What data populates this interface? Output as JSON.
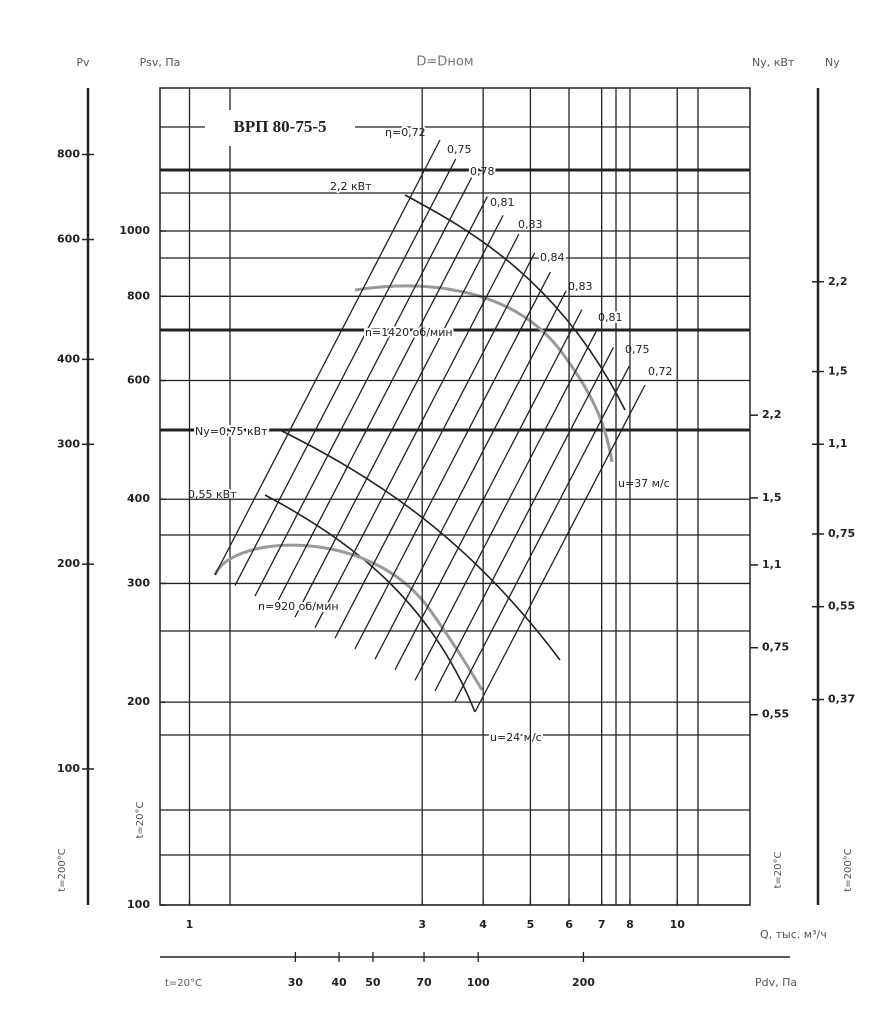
{
  "chart_data": {
    "type": "nomogram",
    "title": "D=Dном",
    "subtitle": "ВРП 80-75-5",
    "axes": [
      {
        "label": "Q, тыс. м³/ч",
        "scale": "log",
        "lim": [
          0.87,
          14.1
        ],
        "ticks": [
          1,
          3,
          4,
          5,
          6,
          7,
          8,
          10
        ]
      },
      {
        "label": "Pdv, Па",
        "temperature": "t=20°C",
        "scale": "log",
        "lim": [
          12.3,
          599
        ],
        "ticks": [
          30,
          40,
          50,
          70,
          100,
          200
        ]
      },
      {
        "label": "Pv",
        "temperature": "t=200°C",
        "scale": "log",
        "lim": [
          63.1,
          1002
        ],
        "ticks": [
          100,
          200,
          300,
          400,
          600,
          800
        ]
      },
      {
        "label": "Psv, Па",
        "temperature": "t=20°C",
        "scale": "log",
        "lim": [
          100,
          1630
        ],
        "ticks": [
          100,
          200,
          300,
          400,
          600,
          800,
          1000
        ]
      },
      {
        "label": "Ny, кВт",
        "temperature": "t=20°C",
        "scale": "log",
        "lim": [
          0.228,
          10
        ],
        "ticks": [
          {
            "value": 0.55,
            "label": "0,55"
          },
          {
            "value": 0.75,
            "label": "0,75"
          },
          {
            "value": 1.1,
            "label": "1,1"
          },
          {
            "value": 1.5,
            "label": "1,5"
          },
          {
            "value": 2.2,
            "label": "2,2"
          }
        ]
      },
      {
        "label": "Ny",
        "temperature": "t=200°C",
        "scale": "log",
        "lim": [
          0.154,
          5.03
        ],
        "ticks": [
          {
            "value": 0.37,
            "label": "0,37"
          },
          {
            "value": 0.55,
            "label": "0,55"
          },
          {
            "value": 0.75,
            "label": "0,75"
          },
          {
            "value": 1.1,
            "label": "1,1"
          },
          {
            "value": 1.5,
            "label": "1,5"
          },
          {
            "value": 2.2,
            "label": "2,2"
          }
        ]
      }
    ],
    "annotations": [
      "η=0,72",
      "0,75",
      "0,78",
      "0,81",
      "0,83",
      "0,84",
      "0,83",
      "0,81",
      "0,75",
      "0,72",
      "2,2 кВт",
      "n=1420 об/мин",
      "Ny=0,75 кВт",
      "0,55 кВт",
      "n=920 об/мин",
      "u=37 м/с",
      "u=24 м/с"
    ]
  }
}
